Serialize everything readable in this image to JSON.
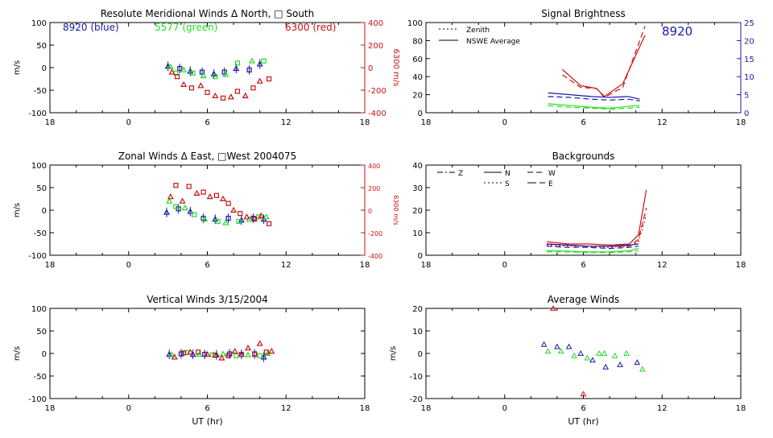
{
  "chart_data": [
    {
      "type": "scatter",
      "title": "Resolute Meridional Winds Δ North, □ South",
      "xlabel": "",
      "ylabel": "m/s",
      "ylabel_right": "6300 m/s",
      "xlim": [
        18,
        42
      ],
      "ylim": [
        -100,
        100
      ],
      "ylim_right": [
        -400,
        400
      ],
      "xticks": [
        18,
        24,
        30,
        36,
        42
      ],
      "xtick_labels": [
        "18",
        "0",
        "6",
        "12",
        "18"
      ],
      "yticks": [
        -100,
        -50,
        0,
        50,
        100
      ],
      "ytick_labels": [
        "-100",
        "-50",
        "0",
        "50",
        "100"
      ],
      "yticks_right": [
        -400,
        -200,
        0,
        200,
        400
      ],
      "ytick_labels_right": [
        "-400",
        "-200",
        "0",
        "200",
        "400"
      ],
      "annotations": [
        {
          "text": "8920 (blue)",
          "color": "#1a1aa8"
        },
        {
          "text": "5577 (green)",
          "color": "#22dd22"
        },
        {
          "text": "6300 (red)",
          "color": "#cc1111"
        }
      ],
      "series": [
        {
          "color": "#1a1aa8",
          "axis": "left",
          "points": [
            [
              27.0,
              3
            ],
            [
              27.9,
              -2
            ],
            [
              28.7,
              -8
            ],
            [
              29.6,
              -10
            ],
            [
              30.5,
              -14
            ],
            [
              31.3,
              -10
            ],
            [
              32.2,
              -2
            ],
            [
              33.2,
              -5
            ],
            [
              34.0,
              8
            ]
          ]
        },
        {
          "color": "#22dd22",
          "axis": "left",
          "points": [
            [
              27.2,
              2
            ],
            [
              27.6,
              -12
            ],
            [
              28.2,
              -5
            ],
            [
              28.9,
              -12
            ],
            [
              29.7,
              -18
            ],
            [
              30.6,
              -20
            ],
            [
              31.4,
              -15
            ],
            [
              32.3,
              10
            ],
            [
              33.4,
              15
            ],
            [
              34.3,
              15
            ]
          ]
        },
        {
          "color": "#cc1111",
          "axis": "right",
          "points": [
            [
              27.3,
              -40
            ],
            [
              27.7,
              -80
            ],
            [
              28.2,
              -150
            ],
            [
              28.8,
              -180
            ],
            [
              29.5,
              -160
            ],
            [
              30.0,
              -220
            ],
            [
              30.6,
              -250
            ],
            [
              31.2,
              -270
            ],
            [
              31.8,
              -260
            ],
            [
              32.3,
              -210
            ],
            [
              32.9,
              -250
            ],
            [
              33.5,
              -180
            ],
            [
              34.0,
              -120
            ],
            [
              34.7,
              -100
            ]
          ]
        }
      ]
    },
    {
      "type": "line",
      "title": "Signal Brightness",
      "xlabel": "",
      "ylabel": "",
      "xlim": [
        18,
        42
      ],
      "ylim": [
        0,
        100
      ],
      "ylim_right": [
        0,
        25
      ],
      "xticks": [
        18,
        24,
        30,
        36,
        42
      ],
      "xtick_labels": [
        "18",
        "0",
        "6",
        "12",
        "18"
      ],
      "yticks": [
        0,
        20,
        40,
        60,
        80,
        100
      ],
      "ytick_labels": [
        "0",
        "20",
        "40",
        "60",
        "80",
        "100"
      ],
      "yticks_right": [
        0,
        5,
        10,
        15,
        20,
        25
      ],
      "ytick_labels_right": [
        "0",
        "5",
        "10",
        "15",
        "20",
        "25"
      ],
      "legend": [
        {
          "label": "Zenith",
          "dash": "dotted"
        },
        {
          "label": "NSWE Average",
          "dash": "solid"
        }
      ],
      "annotation": {
        "text": "8920",
        "color": "#1a1aa8"
      },
      "series": [
        {
          "color": "#cc1111",
          "dash": "solid",
          "x": [
            28.4,
            29.8,
            31.0,
            31.6,
            33.0,
            34.7
          ],
          "y": [
            48,
            30,
            27,
            18,
            32,
            86
          ]
        },
        {
          "color": "#cc1111",
          "dash": "dashed",
          "x": [
            28.4,
            29.8,
            31.0,
            31.6,
            33.0,
            34.7
          ],
          "y": [
            42,
            28,
            27,
            17,
            28,
            96
          ]
        },
        {
          "color": "#1a1aa8",
          "dash": "solid",
          "x": [
            27.3,
            29.0,
            30.6,
            32.0,
            33.4,
            34.3
          ],
          "y": [
            22,
            20,
            18,
            17,
            18,
            15
          ]
        },
        {
          "color": "#1a1aa8",
          "dash": "dashed",
          "x": [
            27.3,
            29.0,
            30.6,
            32.0,
            33.4,
            34.3
          ],
          "y": [
            18,
            17,
            15,
            14,
            15,
            13
          ]
        },
        {
          "color": "#22dd22",
          "dash": "solid",
          "x": [
            27.3,
            29.0,
            30.6,
            32.0,
            33.4,
            34.3
          ],
          "y": [
            10,
            8,
            6,
            5,
            7,
            8
          ]
        },
        {
          "color": "#22dd22",
          "dash": "dashed",
          "x": [
            27.3,
            29.0,
            30.6,
            32.0,
            33.4,
            34.3
          ],
          "y": [
            8,
            6,
            5,
            4,
            5,
            6
          ]
        }
      ]
    },
    {
      "type": "scatter",
      "title": "Zonal Winds Δ East, □West 2004075",
      "xlabel": "",
      "ylabel": "m/s",
      "ylabel_right": "6300 m/s",
      "xlim": [
        18,
        42
      ],
      "ylim": [
        -100,
        100
      ],
      "ylim_right": [
        -400,
        400
      ],
      "xticks": [
        18,
        24,
        30,
        36,
        42
      ],
      "xtick_labels": [
        "18",
        "0",
        "6",
        "12",
        "18"
      ],
      "yticks": [
        -100,
        -50,
        0,
        50,
        100
      ],
      "ytick_labels": [
        "-100",
        "-50",
        "0",
        "50",
        "100"
      ],
      "yticks_right": [
        -400,
        -200,
        0,
        200,
        400
      ],
      "ytick_labels_right": [
        "-400",
        "-200",
        "0",
        "200",
        "400"
      ],
      "series": [
        {
          "color": "#1a1aa8",
          "axis": "left",
          "points": [
            [
              26.9,
              -5
            ],
            [
              27.8,
              3
            ],
            [
              28.7,
              -3
            ],
            [
              29.7,
              -18
            ],
            [
              30.6,
              -20
            ],
            [
              31.6,
              -18
            ],
            [
              32.6,
              -22
            ],
            [
              33.5,
              -18
            ],
            [
              34.3,
              -20
            ]
          ]
        },
        {
          "color": "#22dd22",
          "axis": "left",
          "points": [
            [
              27.1,
              20
            ],
            [
              27.6,
              8
            ],
            [
              28.3,
              5
            ],
            [
              29.0,
              -10
            ],
            [
              29.8,
              -20
            ],
            [
              30.8,
              -25
            ],
            [
              31.4,
              -28
            ],
            [
              32.4,
              -25
            ],
            [
              33.2,
              -20
            ],
            [
              33.9,
              -15
            ],
            [
              34.5,
              -15
            ]
          ]
        },
        {
          "color": "#cc1111",
          "axis": "right",
          "points": [
            [
              27.2,
              120
            ],
            [
              27.6,
              220
            ],
            [
              28.1,
              80
            ],
            [
              28.6,
              210
            ],
            [
              29.2,
              150
            ],
            [
              29.7,
              160
            ],
            [
              30.2,
              120
            ],
            [
              30.7,
              130
            ],
            [
              31.2,
              100
            ],
            [
              31.6,
              60
            ],
            [
              32.0,
              0
            ],
            [
              32.5,
              -30
            ],
            [
              33.0,
              -60
            ],
            [
              33.6,
              -80
            ],
            [
              34.1,
              -50
            ],
            [
              34.7,
              -120
            ]
          ]
        }
      ]
    },
    {
      "type": "line",
      "title": "Backgrounds",
      "xlabel": "",
      "ylabel": "",
      "xlim": [
        18,
        42
      ],
      "ylim": [
        0,
        40
      ],
      "xticks": [
        18,
        24,
        30,
        36,
        42
      ],
      "xtick_labels": [
        "18",
        "0",
        "6",
        "12",
        "18"
      ],
      "yticks": [
        0,
        10,
        20,
        30,
        40
      ],
      "ytick_labels": [
        "0",
        "10",
        "20",
        "30",
        "40"
      ],
      "legend": [
        {
          "label": "Z",
          "dash": "dashdot"
        },
        {
          "label": "N",
          "dash": "solid"
        },
        {
          "label": "W",
          "dash": "dashed"
        },
        {
          "label": "S",
          "dash": "dotted"
        },
        {
          "label": "E",
          "dash": "longdash"
        }
      ],
      "series": [
        {
          "color": "#cc1111",
          "dash": "solid",
          "x": [
            27.2,
            28.8,
            30.4,
            32.0,
            33.5,
            34.2,
            34.8
          ],
          "y": [
            6,
            5,
            5,
            4.5,
            5,
            9,
            29
          ]
        },
        {
          "color": "#cc1111",
          "dash": "dashed",
          "x": [
            27.2,
            28.8,
            30.4,
            32.0,
            33.5,
            34.2,
            34.8
          ],
          "y": [
            5,
            4.5,
            4,
            4,
            4,
            7,
            21
          ]
        },
        {
          "color": "#cc1111",
          "dash": "dotted",
          "x": [
            27.2,
            28.8,
            30.4,
            32.0,
            33.5,
            34.2,
            34.8
          ],
          "y": [
            4.5,
            4,
            4,
            3.5,
            4,
            6,
            18
          ]
        },
        {
          "color": "#1a1aa8",
          "dash": "solid",
          "x": [
            27.2,
            28.8,
            30.4,
            32.0,
            33.5,
            34.2
          ],
          "y": [
            5,
            4.5,
            4,
            4,
            4.5,
            5
          ]
        },
        {
          "color": "#1a1aa8",
          "dash": "dashed",
          "x": [
            27.2,
            28.8,
            30.4,
            32.0,
            33.5,
            34.2
          ],
          "y": [
            4,
            3.5,
            3.5,
            3,
            3.5,
            4
          ]
        },
        {
          "color": "#22dd22",
          "dash": "solid",
          "x": [
            27.2,
            28.8,
            30.4,
            32.0,
            33.5,
            34.2
          ],
          "y": [
            2,
            1.8,
            1.5,
            1.5,
            2,
            3
          ]
        },
        {
          "color": "#22dd22",
          "dash": "dashed",
          "x": [
            27.2,
            28.8,
            30.4,
            32.0,
            33.5,
            34.2
          ],
          "y": [
            1.5,
            1.5,
            1.2,
            1.2,
            1.5,
            2
          ]
        }
      ]
    },
    {
      "type": "scatter",
      "title": "Vertical Winds 3/15/2004",
      "xlabel": "UT (hr)",
      "ylabel": "m/s",
      "xlim": [
        18,
        42
      ],
      "ylim": [
        -100,
        100
      ],
      "xticks": [
        18,
        24,
        30,
        36,
        42
      ],
      "xtick_labels": [
        "18",
        "0",
        "6",
        "12",
        "18"
      ],
      "yticks": [
        -100,
        -50,
        0,
        50,
        100
      ],
      "ytick_labels": [
        "-100",
        "-50",
        "0",
        "50",
        "100"
      ],
      "series": [
        {
          "color": "#1a1aa8",
          "points": [
            [
              27.1,
              -2
            ],
            [
              28.0,
              -1
            ],
            [
              28.9,
              -2
            ],
            [
              29.8,
              -2
            ],
            [
              30.7,
              -3
            ],
            [
              31.7,
              -1
            ],
            [
              32.6,
              -2
            ],
            [
              33.6,
              -1
            ],
            [
              34.3,
              -8
            ]
          ]
        },
        {
          "color": "#22dd22",
          "points": [
            [
              27.3,
              -3
            ],
            [
              28.4,
              2
            ],
            [
              29.4,
              -2
            ],
            [
              30.4,
              -3
            ],
            [
              31.2,
              -1
            ],
            [
              32.2,
              -5
            ],
            [
              33.1,
              -3
            ],
            [
              34.0,
              -5
            ],
            [
              34.6,
              0
            ]
          ]
        },
        {
          "color": "#cc1111",
          "points": [
            [
              27.5,
              -8
            ],
            [
              28.2,
              1
            ],
            [
              28.7,
              3
            ],
            [
              29.3,
              3
            ],
            [
              30.0,
              -2
            ],
            [
              30.6,
              -4
            ],
            [
              31.1,
              -10
            ],
            [
              31.6,
              -5
            ],
            [
              32.1,
              5
            ],
            [
              32.6,
              -2
            ],
            [
              33.1,
              12
            ],
            [
              33.6,
              -2
            ],
            [
              34.0,
              22
            ],
            [
              34.5,
              3
            ],
            [
              34.9,
              5
            ]
          ]
        }
      ]
    },
    {
      "type": "scatter",
      "title": "Average Winds",
      "xlabel": "UT (hr)",
      "ylabel": "m/s",
      "xlim": [
        18,
        42
      ],
      "ylim": [
        -20,
        20
      ],
      "xticks": [
        18,
        24,
        30,
        36,
        42
      ],
      "xtick_labels": [
        "18",
        "0",
        "6",
        "12",
        "18"
      ],
      "yticks": [
        -20,
        -10,
        0,
        10,
        20
      ],
      "ytick_labels": [
        "-20",
        "-10",
        "0",
        "10",
        "20"
      ],
      "series": [
        {
          "color": "#1a1aa8",
          "points": [
            [
              27.0,
              4
            ],
            [
              28.0,
              3
            ],
            [
              28.9,
              3
            ],
            [
              29.8,
              0
            ],
            [
              30.7,
              -3
            ],
            [
              31.7,
              -6
            ],
            [
              32.8,
              -5
            ],
            [
              34.1,
              -4
            ]
          ]
        },
        {
          "color": "#22dd22",
          "points": [
            [
              27.3,
              1
            ],
            [
              28.3,
              1
            ],
            [
              29.3,
              -1
            ],
            [
              30.3,
              -2
            ],
            [
              31.2,
              0
            ],
            [
              31.6,
              0
            ],
            [
              32.4,
              -1
            ],
            [
              33.3,
              0
            ],
            [
              34.5,
              -7
            ]
          ]
        },
        {
          "color": "#cc1111",
          "points": [
            [
              27.7,
              20
            ],
            [
              30.0,
              -18
            ]
          ]
        }
      ]
    }
  ]
}
